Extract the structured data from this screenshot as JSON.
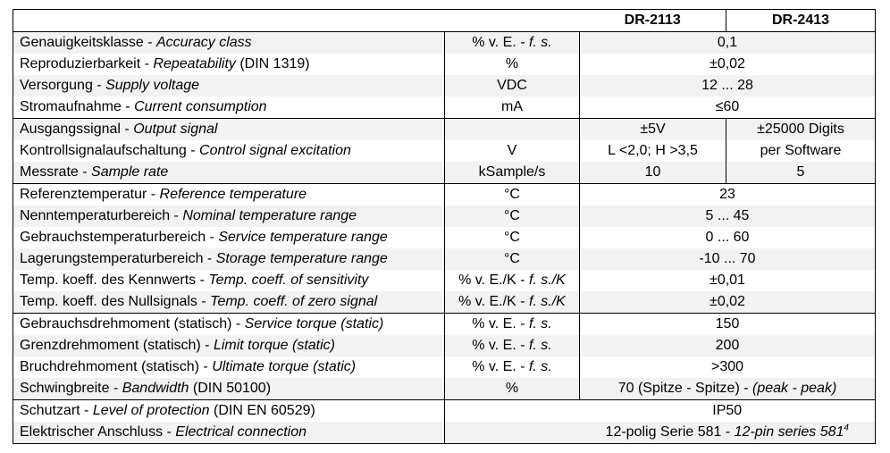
{
  "header": {
    "col1": "DR-2113",
    "col2": "DR-2413"
  },
  "groups": [
    [
      {
        "de": "Genauigkeitsklasse - ",
        "en": "Accuracy class",
        "extra": "",
        "unit": "% v. E. - ",
        "unit_i": "f. s.",
        "value": "0,1"
      },
      {
        "de": "Reproduzierbarkeit - ",
        "en": "Repeatability",
        "extra": " (DIN 1319)",
        "unit": "%",
        "unit_i": "",
        "value": "±0,02"
      },
      {
        "de": "Versorgung - ",
        "en": "Supply voltage",
        "extra": "",
        "unit": "VDC",
        "unit_i": "",
        "value": "12 ... 28"
      },
      {
        "de": "Stromaufnahme - ",
        "en": "Current consumption",
        "extra": "",
        "unit": "mA",
        "unit_i": "",
        "value": "≤60"
      }
    ],
    [
      {
        "de": "Ausgangssignal - ",
        "en": "Output signal",
        "extra": "",
        "unit": "",
        "unit_i": "",
        "v1": "±5V",
        "v2": "±25000 Digits"
      },
      {
        "de": "Kontrollsignalaufschaltung - ",
        "en": "Control signal excitation",
        "extra": "",
        "unit": "V",
        "unit_i": "",
        "v1": "L <2,0; H >3,5",
        "v2": "per Software"
      },
      {
        "de": "Messrate - ",
        "en": "Sample rate",
        "extra": "",
        "unit": "kSample/s",
        "unit_i": "",
        "v1": "10",
        "v2": "5"
      }
    ],
    [
      {
        "de": "Referenztemperatur - ",
        "en": "Reference temperature",
        "extra": "",
        "unit": "°C",
        "unit_i": "",
        "value": "23"
      },
      {
        "de": "Nenntemperaturbereich - ",
        "en": "Nominal temperature range",
        "extra": "",
        "unit": "°C",
        "unit_i": "",
        "value": "5 ... 45"
      },
      {
        "de": "Gebrauchstemperaturbereich - ",
        "en": "Service temperature range",
        "extra": "",
        "unit": "°C",
        "unit_i": "",
        "value": "0 ... 60"
      },
      {
        "de": "Lagerungstemperaturbereich - ",
        "en": "Storage temperature range",
        "extra": "",
        "unit": "°C",
        "unit_i": "",
        "value": "-10 ... 70"
      },
      {
        "de": "Temp. koeff. des Kennwerts - ",
        "en": "Temp. coeff. of sensitivity",
        "extra": "",
        "unit": "% v. E./K - ",
        "unit_i": "f. s./K",
        "value": "±0,01"
      },
      {
        "de": "Temp. koeff. des Nullsignals - ",
        "en": "Temp. coeff. of zero signal",
        "extra": "",
        "unit": "% v. E./K - ",
        "unit_i": "f. s./K",
        "value": "±0,02"
      }
    ],
    [
      {
        "de": "Gebrauchsdrehmoment (statisch) - ",
        "en": "Service torque (static)",
        "extra": "",
        "unit": "% v. E. - ",
        "unit_i": "f. s.",
        "value": "150"
      },
      {
        "de": "Grenzdrehmoment (statisch) - ",
        "en": "Limit torque (static)",
        "extra": "",
        "unit": "% v. E. - ",
        "unit_i": "f. s.",
        "value": "200"
      },
      {
        "de": "Bruchdrehmoment (statisch) - ",
        "en": "Ultimate torque (static)",
        "extra": "",
        "unit": "% v. E. - ",
        "unit_i": "f. s.",
        "value": ">300"
      },
      {
        "de": "Schwingbreite - ",
        "en": "Bandwidth",
        "extra": " (DIN 50100)",
        "unit": "%",
        "unit_i": "",
        "value": "70 (Spitze - Spitze) - ",
        "value_i": "(peak - peak)"
      }
    ],
    [
      {
        "de": "Schutzart - ",
        "en": "Level of protection",
        "extra": " (DIN EN 60529)",
        "nounit": true,
        "unit": "",
        "unit_i": "",
        "value": "IP50"
      },
      {
        "de": "Elektrischer Anschluss - ",
        "en": "Electrical connection",
        "extra": "",
        "nounit": true,
        "unit": "",
        "unit_i": "",
        "value": "12-polig Serie 581 - ",
        "value_i": "12-pin series 581",
        "value_sup": "4"
      }
    ]
  ]
}
